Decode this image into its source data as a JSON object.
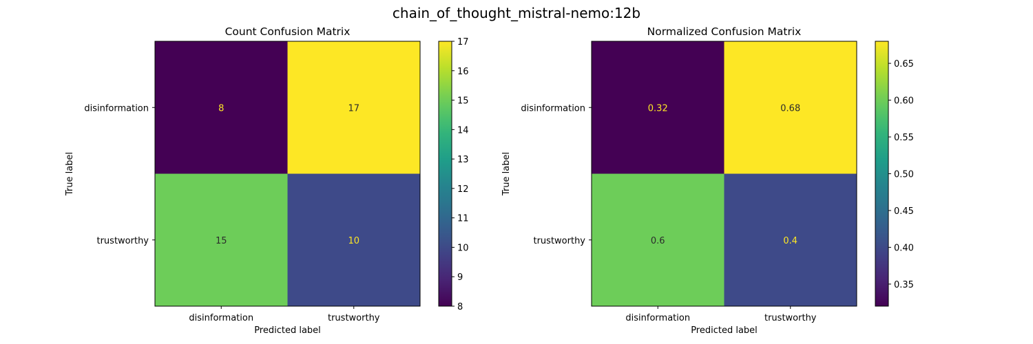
{
  "figure": {
    "title": "chain_of_thought_mistral-nemo:12b"
  },
  "chart_data": [
    {
      "type": "heatmap",
      "title": "Count Confusion Matrix",
      "xlabel": "Predicted label",
      "ylabel": "True label",
      "x_categories": [
        "disinformation",
        "trustworthy"
      ],
      "y_categories": [
        "disinformation",
        "trustworthy"
      ],
      "values": [
        [
          8,
          17
        ],
        [
          15,
          10
        ]
      ],
      "cell_labels": [
        [
          "8",
          "17"
        ],
        [
          "15",
          "10"
        ]
      ],
      "colormap": "viridis",
      "colorbar": {
        "range": [
          8,
          17
        ],
        "ticks": [
          8,
          9,
          10,
          11,
          12,
          13,
          14,
          15,
          16,
          17
        ],
        "tick_labels": [
          "8",
          "9",
          "10",
          "11",
          "12",
          "13",
          "14",
          "15",
          "16",
          "17"
        ]
      }
    },
    {
      "type": "heatmap",
      "title": "Normalized Confusion Matrix",
      "xlabel": "Predicted label",
      "ylabel": "True label",
      "x_categories": [
        "disinformation",
        "trustworthy"
      ],
      "y_categories": [
        "disinformation",
        "trustworthy"
      ],
      "values": [
        [
          0.32,
          0.68
        ],
        [
          0.6,
          0.4
        ]
      ],
      "cell_labels": [
        [
          "0.32",
          "0.68"
        ],
        [
          "0.6",
          "0.4"
        ]
      ],
      "colormap": "viridis",
      "colorbar": {
        "range": [
          0.32,
          0.68
        ],
        "ticks": [
          0.35,
          0.4,
          0.45,
          0.5,
          0.55,
          0.6,
          0.65
        ],
        "tick_labels": [
          "0.35",
          "0.40",
          "0.45",
          "0.50",
          "0.55",
          "0.60",
          "0.65"
        ]
      }
    }
  ]
}
